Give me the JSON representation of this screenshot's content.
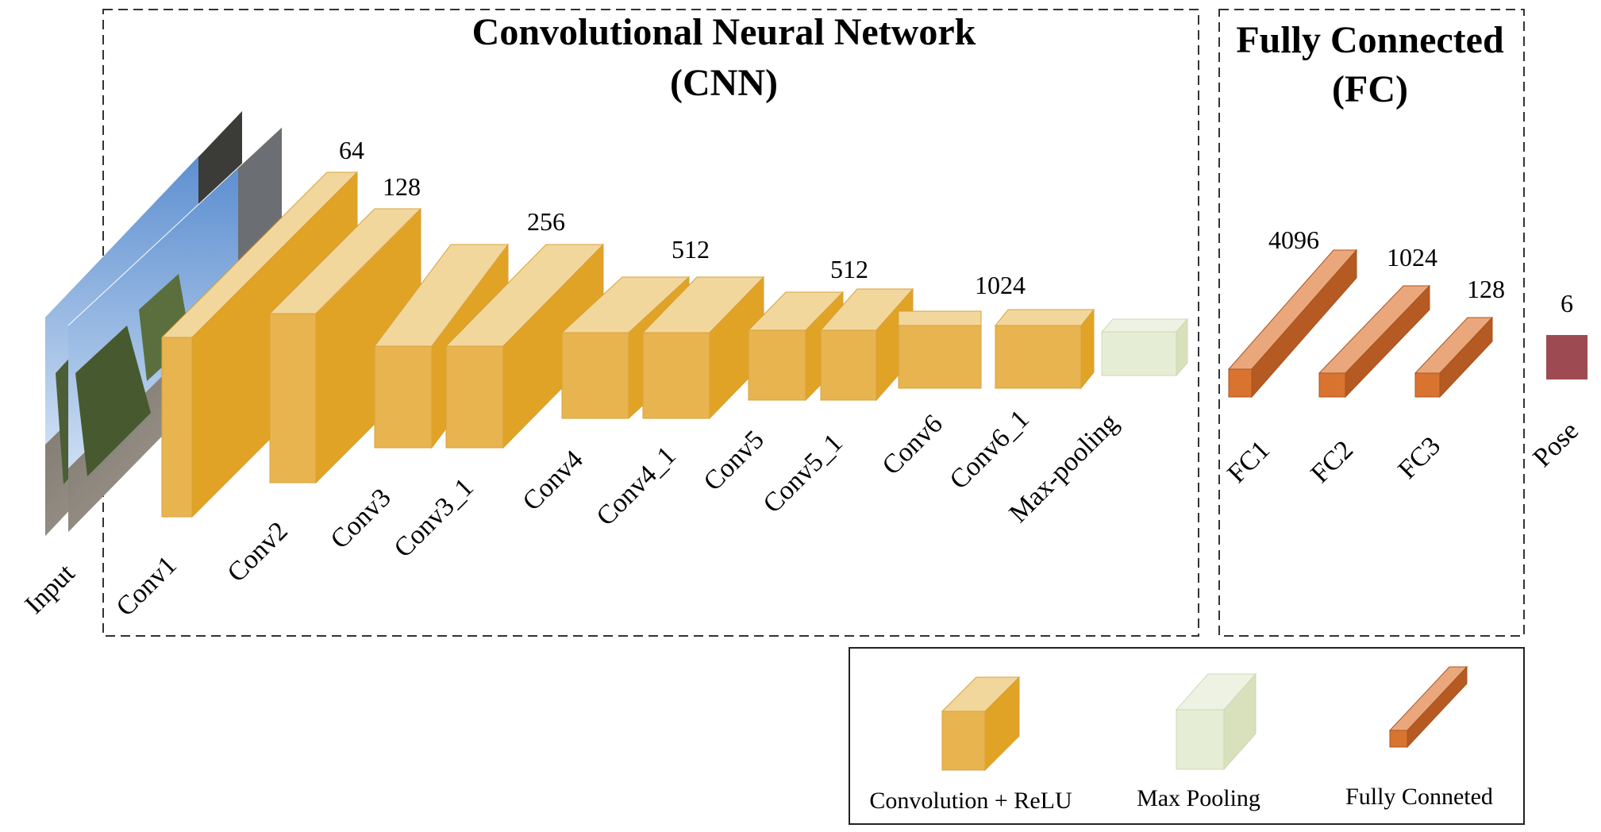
{
  "cnn_section": {
    "title_line1": "Convolutional Neural Network",
    "title_line2": "(CNN)"
  },
  "fc_section": {
    "title_line1": "Fully Connected",
    "title_line2": "(FC)"
  },
  "input": {
    "label": "Input"
  },
  "layers": [
    {
      "id": "conv1",
      "name": "Conv1",
      "kind": "conv",
      "channels": "64"
    },
    {
      "id": "conv2",
      "name": "Conv2",
      "kind": "conv",
      "channels": "128"
    },
    {
      "id": "conv3",
      "name": "Conv3",
      "kind": "conv",
      "channels": ""
    },
    {
      "id": "conv3_1",
      "name": "Conv3_1",
      "kind": "conv",
      "channels": "256"
    },
    {
      "id": "conv4",
      "name": "Conv4",
      "kind": "conv",
      "channels": ""
    },
    {
      "id": "conv4_1",
      "name": "Conv4_1",
      "kind": "conv",
      "channels": "512"
    },
    {
      "id": "conv5",
      "name": "Conv5",
      "kind": "conv",
      "channels": ""
    },
    {
      "id": "conv5_1",
      "name": "Conv5_1",
      "kind": "conv",
      "channels": "512"
    },
    {
      "id": "conv6",
      "name": "Conv6",
      "kind": "conv",
      "channels": ""
    },
    {
      "id": "conv6_1",
      "name": "Conv6_1",
      "kind": "conv",
      "channels": "1024"
    },
    {
      "id": "maxpool",
      "name": "Max-pooling",
      "kind": "pool",
      "channels": ""
    },
    {
      "id": "fc1",
      "name": "FC1",
      "kind": "fc",
      "channels": "4096"
    },
    {
      "id": "fc2",
      "name": "FC2",
      "kind": "fc",
      "channels": "1024"
    },
    {
      "id": "fc3",
      "name": "FC3",
      "kind": "fc",
      "channels": "128"
    },
    {
      "id": "pose",
      "name": "Pose",
      "kind": "out",
      "channels": "6"
    }
  ],
  "legend": {
    "conv_label": "Convolution + ReLU",
    "pool_label": "Max Pooling",
    "fc_label": "Fully Conneted"
  },
  "colors": {
    "conv_front": "#E8B450",
    "conv_top": "#F2D79C",
    "conv_side": "#E0A325",
    "pool_front": "#E5EDD5",
    "pool_top": "#EEF2E3",
    "pool_side": "#D8E0BC",
    "fc_front": "#D97430",
    "fc_top": "#EBA77C",
    "fc_side": "#B45A22",
    "pose": "#9E4A52"
  }
}
